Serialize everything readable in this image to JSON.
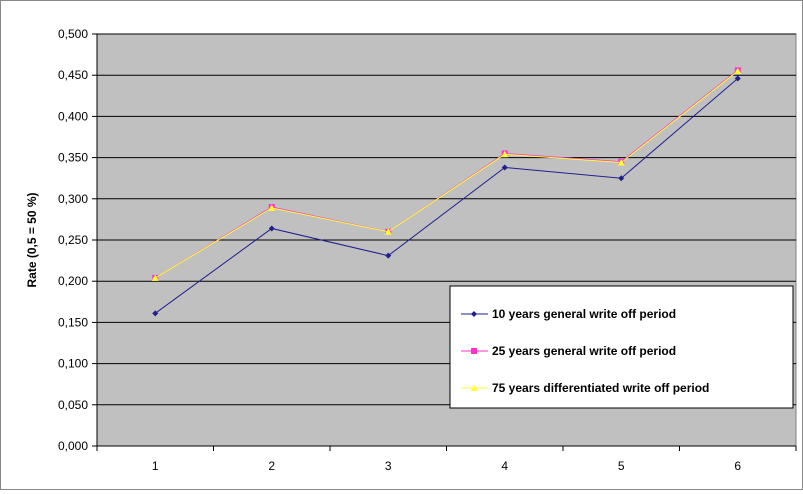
{
  "chart_data": {
    "type": "line",
    "title": "",
    "xlabel": "",
    "ylabel": "Rate (0,5 = 50 %)",
    "x": [
      1,
      2,
      3,
      4,
      5,
      6
    ],
    "x_tick_labels": [
      "1",
      "2",
      "3",
      "4",
      "5",
      "6"
    ],
    "ylim": [
      0,
      0.5
    ],
    "y_tick_labels": [
      "0,000",
      "0,050",
      "0,100",
      "0,150",
      "0,200",
      "0,250",
      "0,300",
      "0,350",
      "0,400",
      "0,450",
      "0,500"
    ],
    "grid": true,
    "legend_position": "bottom-right",
    "plot_background": "#c0c0c0",
    "series": [
      {
        "name": "10 years general write off period",
        "color": "#1f1f8f",
        "values": [
          0.161,
          0.264,
          0.231,
          0.338,
          0.325,
          0.446
        ]
      },
      {
        "name": "25 years general write off period",
        "color": "#ff33cc",
        "values": [
          0.204,
          0.29,
          0.26,
          0.355,
          0.345,
          0.456
        ]
      },
      {
        "name": "75 years differentiated write off period",
        "color": "#ffff33",
        "values": [
          0.204,
          0.289,
          0.26,
          0.354,
          0.344,
          0.455
        ]
      }
    ]
  }
}
